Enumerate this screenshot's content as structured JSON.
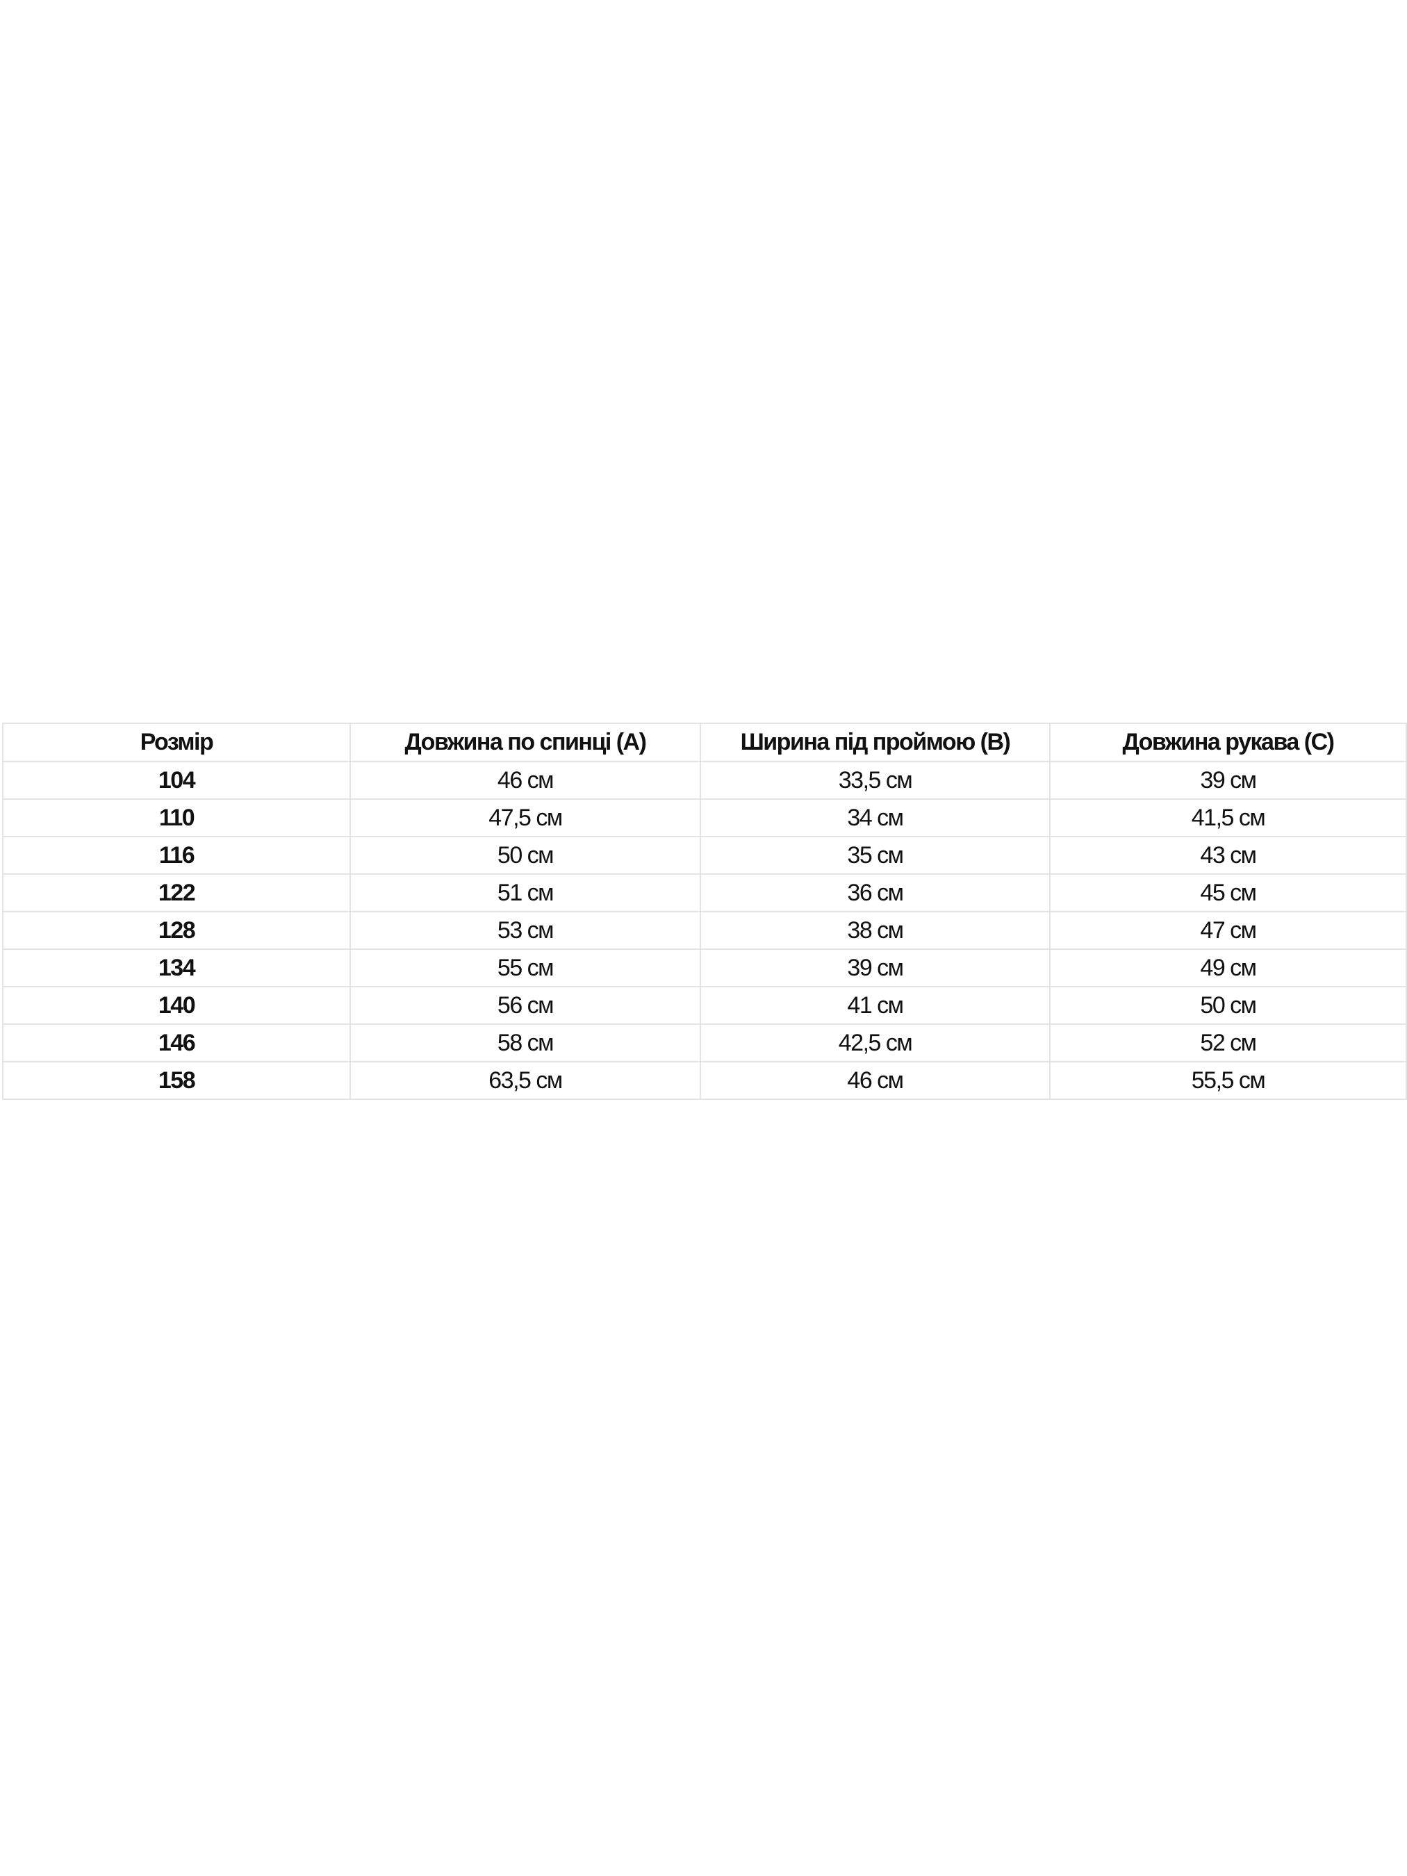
{
  "table": {
    "headers": [
      "Розмір",
      "Довжина по спинці (A)",
      "Ширина під проймою (B)",
      "Довжина рукава (C)"
    ],
    "rows": [
      [
        "104",
        "46 см",
        "33,5 см",
        "39 см"
      ],
      [
        "110",
        "47,5 см",
        "34 см",
        "41,5 см"
      ],
      [
        "116",
        "50 см",
        "35 см",
        "43 см"
      ],
      [
        "122",
        "51 см",
        "36 см",
        "45 см"
      ],
      [
        "128",
        "53 см",
        "38 см",
        "47 см"
      ],
      [
        "134",
        "55 см",
        "39 см",
        "49 см"
      ],
      [
        "140",
        "56 см",
        "41 см",
        "50 см"
      ],
      [
        "146",
        "58 см",
        "42,5 см",
        "52 см"
      ],
      [
        "158",
        "63,5 см",
        "46 см",
        "55,5 см"
      ]
    ]
  }
}
